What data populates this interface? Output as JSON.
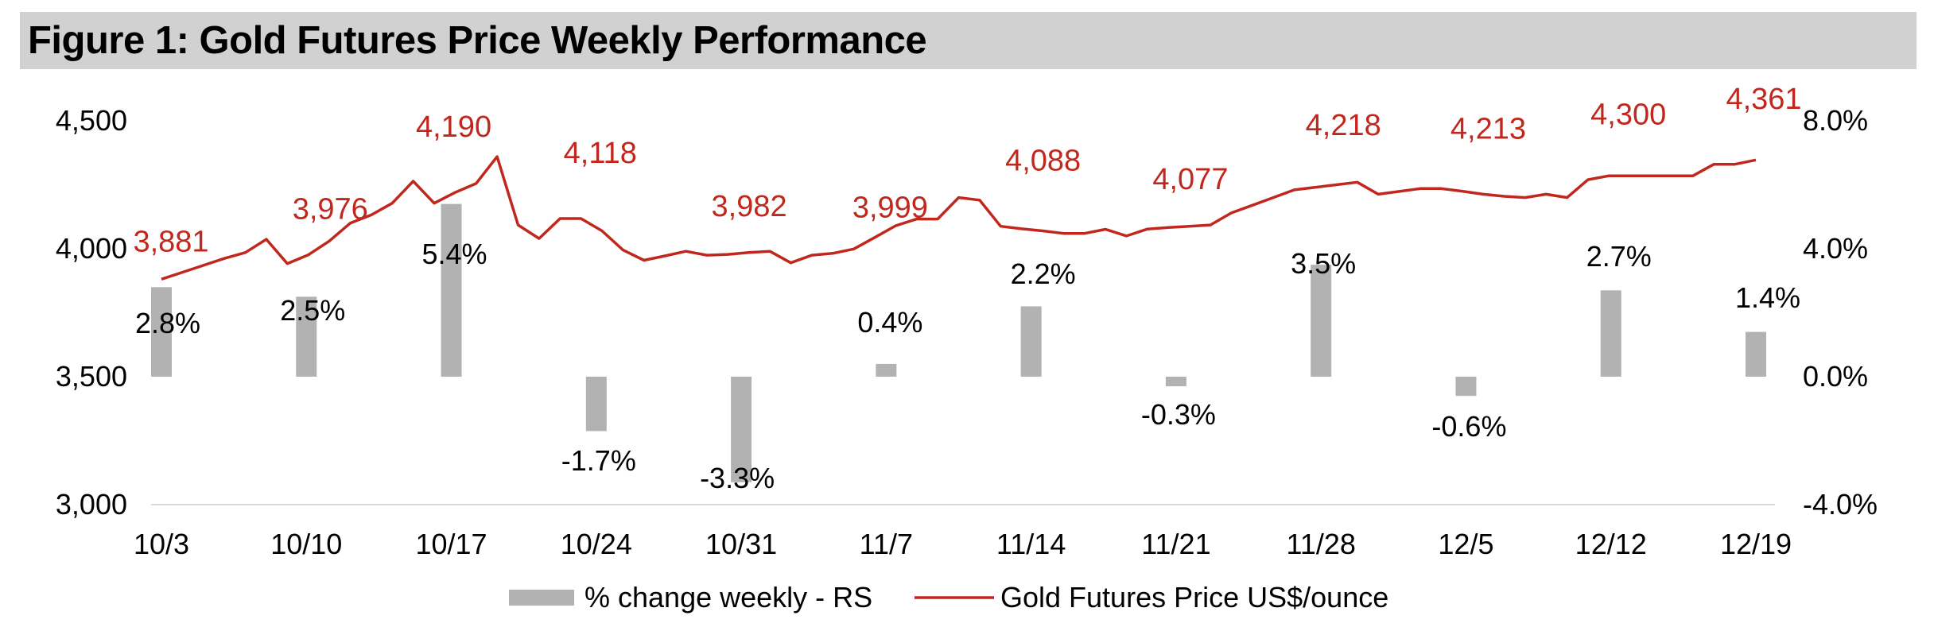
{
  "chart_data": {
    "type": "bar+line",
    "title": "Figure 1: Gold Futures Price Weekly Performance",
    "colors": {
      "bar": "#b2b2b2",
      "line": "#c0281e",
      "line_label": "#c0281e",
      "text": "#000000",
      "axis": "#d9d9d9",
      "title_bg": "#d1d1d1"
    },
    "left_axis": {
      "min": 3000,
      "max": 4500,
      "ticks": [
        "3,000",
        "3,500",
        "4,000",
        "4,500"
      ],
      "tick_values": [
        3000,
        3500,
        4000,
        4500
      ]
    },
    "right_axis": {
      "min": -4.0,
      "max": 8.0,
      "ticks": [
        "-4.0%",
        "0.0%",
        "4.0%",
        "8.0%"
      ],
      "tick_values": [
        -4,
        0,
        4,
        8
      ]
    },
    "x_labels": [
      "10/3",
      "10/10",
      "10/17",
      "10/24",
      "10/31",
      "11/7",
      "11/14",
      "11/21",
      "11/28",
      "12/5",
      "12/12",
      "12/19"
    ],
    "weekly_change": {
      "name": "% change weekly - RS",
      "values": [
        2.8,
        2.5,
        5.4,
        -1.7,
        -3.3,
        0.4,
        2.2,
        -0.3,
        3.5,
        -0.6,
        2.7,
        1.4
      ],
      "labels": [
        "2.8%",
        "2.5%",
        "5.4%",
        "-1.7%",
        "-3.3%",
        "0.4%",
        "2.2%",
        "-0.3%",
        "3.5%",
        "-0.6%",
        "2.7%",
        "1.4%"
      ]
    },
    "price": {
      "name": "Gold Futures Price US$/ounce",
      "weekly_values": [
        3881,
        3976,
        4190,
        4118,
        3982,
        3999,
        4088,
        4077,
        4218,
        4213,
        4300,
        4361
      ],
      "weekly_labels": [
        "3,881",
        "3,976",
        "4,190",
        "4,118",
        "3,982",
        "3,999",
        "4,088",
        "4,077",
        "4,218",
        "4,213",
        "4,300",
        "4,361"
      ],
      "daily_values": [
        3881,
        3908,
        3935,
        3962,
        3985,
        4037,
        3942,
        3976,
        4030,
        4100,
        4132,
        4178,
        4264,
        4178,
        4220,
        4255,
        4360,
        4093,
        4040,
        4118,
        4118,
        4070,
        3995,
        3955,
        3972,
        3990,
        3975,
        3978,
        3985,
        3990,
        3945,
        3975,
        3982,
        3999,
        4044,
        4090,
        4116,
        4116,
        4200,
        4190,
        4088,
        4078,
        4070,
        4060,
        4060,
        4076,
        4050,
        4077,
        4083,
        4088,
        4093,
        4140,
        4170,
        4200,
        4230,
        4240,
        4250,
        4260,
        4213,
        4224,
        4235,
        4235,
        4225,
        4213,
        4205,
        4200,
        4213,
        4200,
        4270,
        4285,
        4285,
        4285,
        4285,
        4285,
        4330,
        4330,
        4347
      ]
    },
    "legend": {
      "position": "bottom-center",
      "entries": [
        "% change weekly - RS",
        "Gold Futures Price US$/ounce"
      ]
    }
  }
}
